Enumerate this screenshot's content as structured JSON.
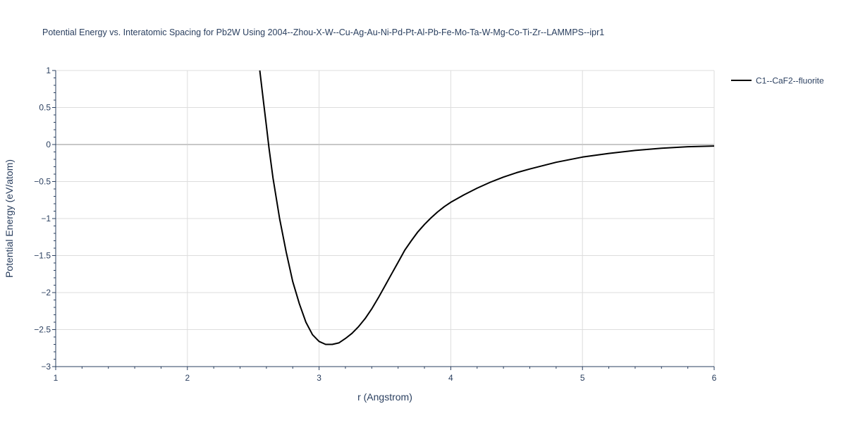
{
  "chart_data": {
    "type": "line",
    "title": "Potential Energy vs. Interatomic Spacing for Pb2W Using 2004--Zhou-X-W--Cu-Ag-Au-Ni-Pd-Pt-Al-Pb-Fe-Mo-Ta-W-Mg-Co-Ti-Zr--LAMMPS--ipr1",
    "xlabel": "r (Angstrom)",
    "ylabel": "Potential Energy (eV/atom)",
    "xlim": [
      1,
      6
    ],
    "ylim": [
      -3,
      1
    ],
    "xticks": [
      1,
      2,
      3,
      4,
      5,
      6
    ],
    "xtick_labels": [
      "1",
      "2",
      "3",
      "4",
      "5",
      "6"
    ],
    "yticks": [
      -3,
      -2.5,
      -2,
      -1.5,
      -1,
      -0.5,
      0,
      0.5,
      1
    ],
    "ytick_labels": [
      "−3",
      "−2.5",
      "−2",
      "−1.5",
      "−1",
      "−0.5",
      "0",
      "0.5",
      "1"
    ],
    "grid": true,
    "legend_position": "top-right",
    "series": [
      {
        "name": "C1--CaF2--fluorite",
        "color": "#000000",
        "x": [
          2.55,
          2.58,
          2.6,
          2.62,
          2.65,
          2.7,
          2.75,
          2.8,
          2.85,
          2.9,
          2.95,
          3.0,
          3.05,
          3.1,
          3.15,
          3.2,
          3.25,
          3.3,
          3.35,
          3.4,
          3.45,
          3.5,
          3.55,
          3.6,
          3.65,
          3.7,
          3.75,
          3.8,
          3.85,
          3.9,
          3.95,
          4.0,
          4.1,
          4.2,
          4.3,
          4.4,
          4.5,
          4.6,
          4.8,
          5.0,
          5.2,
          5.4,
          5.6,
          5.8,
          6.0
        ],
        "y": [
          1.0,
          0.55,
          0.25,
          -0.05,
          -0.45,
          -1.0,
          -1.45,
          -1.85,
          -2.15,
          -2.4,
          -2.57,
          -2.66,
          -2.7,
          -2.7,
          -2.68,
          -2.62,
          -2.55,
          -2.46,
          -2.35,
          -2.22,
          -2.07,
          -1.91,
          -1.75,
          -1.59,
          -1.43,
          -1.3,
          -1.18,
          -1.08,
          -0.99,
          -0.91,
          -0.84,
          -0.78,
          -0.68,
          -0.59,
          -0.51,
          -0.44,
          -0.38,
          -0.33,
          -0.24,
          -0.17,
          -0.12,
          -0.08,
          -0.05,
          -0.03,
          -0.02
        ]
      }
    ]
  }
}
